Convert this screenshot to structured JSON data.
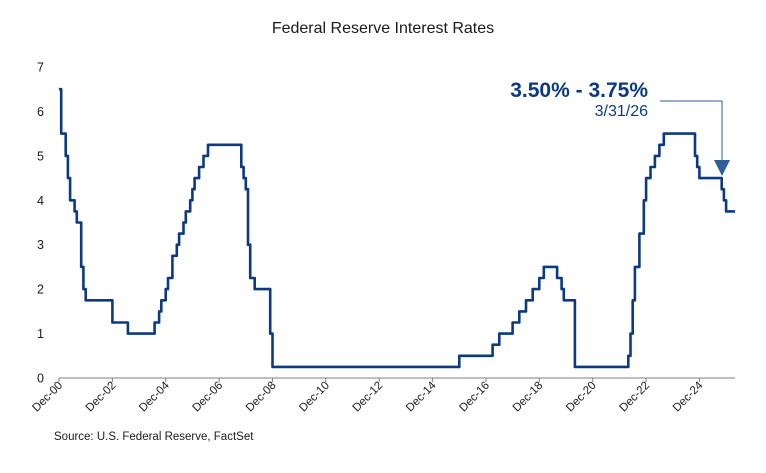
{
  "chart_data": {
    "type": "line",
    "title": "Federal Reserve Interest Rates",
    "source": "Source: U.S. Federal Reserve, FactSet",
    "ylim": [
      0,
      7
    ],
    "yticks": [
      "0",
      "1",
      "2",
      "3",
      "4",
      "5",
      "6",
      "7"
    ],
    "xlim": [
      2000.917,
      2026.25
    ],
    "xtick_positions": [
      2000.917,
      2002.917,
      2004.917,
      2006.917,
      2008.917,
      2010.917,
      2012.917,
      2014.917,
      2016.917,
      2018.917,
      2020.917,
      2022.917,
      2024.917
    ],
    "xtick_labels": [
      "Dec-00",
      "Dec-02",
      "Dec-04",
      "Dec-06",
      "Dec-08",
      "Dec-10",
      "Dec-12",
      "Dec-14",
      "Dec-16",
      "Dec-18",
      "Dec-20",
      "Dec-22",
      "Dec-24"
    ],
    "series": [
      {
        "line_color": "#0b3a82",
        "points": [
          [
            2000.917,
            6.5
          ],
          [
            2001.0,
            5.5
          ],
          [
            2001.083,
            5.5
          ],
          [
            2001.167,
            5.0
          ],
          [
            2001.25,
            4.5
          ],
          [
            2001.333,
            4.0
          ],
          [
            2001.417,
            4.0
          ],
          [
            2001.5,
            3.75
          ],
          [
            2001.583,
            3.5
          ],
          [
            2001.667,
            3.5
          ],
          [
            2001.75,
            2.5
          ],
          [
            2001.833,
            2.0
          ],
          [
            2001.917,
            1.75
          ],
          [
            2002.833,
            1.75
          ],
          [
            2002.917,
            1.25
          ],
          [
            2003.417,
            1.25
          ],
          [
            2003.5,
            1.0
          ],
          [
            2004.417,
            1.0
          ],
          [
            2004.5,
            1.25
          ],
          [
            2004.667,
            1.5
          ],
          [
            2004.75,
            1.75
          ],
          [
            2004.917,
            2.0
          ],
          [
            2005.0,
            2.25
          ],
          [
            2005.167,
            2.75
          ],
          [
            2005.333,
            3.0
          ],
          [
            2005.417,
            3.25
          ],
          [
            2005.583,
            3.5
          ],
          [
            2005.667,
            3.75
          ],
          [
            2005.833,
            4.0
          ],
          [
            2005.917,
            4.25
          ],
          [
            2006.0,
            4.5
          ],
          [
            2006.167,
            4.75
          ],
          [
            2006.333,
            5.0
          ],
          [
            2006.5,
            5.25
          ],
          [
            2007.667,
            5.25
          ],
          [
            2007.75,
            4.75
          ],
          [
            2007.833,
            4.5
          ],
          [
            2007.917,
            4.25
          ],
          [
            2008.0,
            3.0
          ],
          [
            2008.083,
            2.25
          ],
          [
            2008.25,
            2.0
          ],
          [
            2008.75,
            2.0
          ],
          [
            2008.833,
            1.0
          ],
          [
            2008.917,
            0.25
          ],
          [
            2015.917,
            0.25
          ],
          [
            2015.917,
            0.5
          ],
          [
            2016.917,
            0.5
          ],
          [
            2017.167,
            0.75
          ],
          [
            2017.417,
            1.0
          ],
          [
            2017.917,
            1.25
          ],
          [
            2018.167,
            1.5
          ],
          [
            2018.417,
            1.75
          ],
          [
            2018.667,
            2.0
          ],
          [
            2018.917,
            2.25
          ],
          [
            2019.083,
            2.5
          ],
          [
            2019.5,
            2.5
          ],
          [
            2019.583,
            2.25
          ],
          [
            2019.75,
            2.0
          ],
          [
            2019.833,
            1.75
          ],
          [
            2020.167,
            1.75
          ],
          [
            2020.25,
            0.25
          ],
          [
            2022.167,
            0.25
          ],
          [
            2022.25,
            0.5
          ],
          [
            2022.333,
            1.0
          ],
          [
            2022.417,
            1.75
          ],
          [
            2022.5,
            2.5
          ],
          [
            2022.667,
            3.25
          ],
          [
            2022.833,
            4.0
          ],
          [
            2022.917,
            4.5
          ],
          [
            2023.083,
            4.75
          ],
          [
            2023.25,
            5.0
          ],
          [
            2023.417,
            5.25
          ],
          [
            2023.583,
            5.5
          ],
          [
            2024.667,
            5.5
          ],
          [
            2024.75,
            5.0
          ],
          [
            2024.833,
            4.75
          ],
          [
            2024.917,
            4.5
          ],
          [
            2025.667,
            4.5
          ],
          [
            2025.75,
            4.25
          ],
          [
            2025.833,
            4.0
          ],
          [
            2025.917,
            3.75
          ],
          [
            2026.25,
            3.75
          ]
        ]
      }
    ],
    "annotation": {
      "value": "3.50% - 3.75%",
      "date": "3/31/26",
      "color": "#0b3a82",
      "arrow_color": "#2f5e98"
    },
    "grid": false,
    "axis_color": "#7f7f7f"
  }
}
